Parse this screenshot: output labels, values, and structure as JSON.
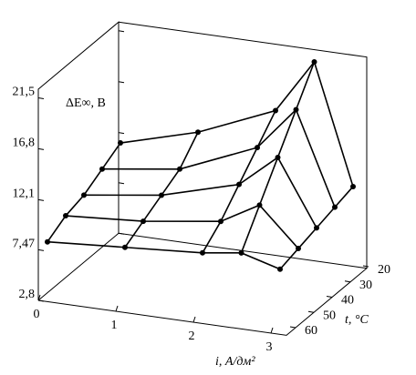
{
  "chart_data": {
    "type": "surface3d",
    "z_label": "ΔE∞, В",
    "x_label": "i, А/дм²",
    "y_label": "t, °C",
    "i": [
      0,
      1,
      2,
      2.5,
      3
    ],
    "t": [
      60,
      50,
      40,
      30,
      20
    ],
    "z": [
      [
        7.5,
        8,
        8.5,
        9,
        8
      ],
      [
        8.5,
        9,
        10,
        12,
        8.5
      ],
      [
        9,
        10,
        12,
        15,
        9
      ],
      [
        10,
        11,
        14,
        18,
        9.5
      ],
      [
        11,
        13,
        16,
        21,
        10
      ]
    ],
    "color": "#000000",
    "xlim": [
      0,
      3.2
    ],
    "ylim": [
      65,
      21
    ],
    "zlim": [
      2.8,
      22.3
    ],
    "xticks": [
      0,
      1,
      2,
      3
    ],
    "yticks": [
      20,
      30,
      40,
      50,
      60
    ],
    "zticks": [
      {
        "value": 2.8,
        "label": "2,8"
      },
      {
        "value": 7.47,
        "label": "7,47"
      },
      {
        "value": 12.1,
        "label": "12,1"
      },
      {
        "value": 16.8,
        "label": "16,8"
      },
      {
        "value": 21.5,
        "label": "21,5"
      }
    ]
  }
}
